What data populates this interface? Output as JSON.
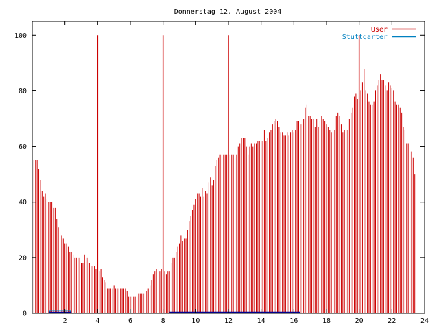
{
  "chart_data": {
    "type": "bar",
    "title": "Donnerstag 12. August 2004",
    "xlabel": "",
    "ylabel": "",
    "xlim": [
      0,
      24
    ],
    "ylim": [
      0,
      105
    ],
    "grid": false,
    "legend_position": "top-right",
    "x_ticks": [
      "2",
      "4",
      "6",
      "8",
      "10",
      "12",
      "14",
      "16",
      "18",
      "20",
      "22",
      "24"
    ],
    "y_ticks": [
      "0",
      "20",
      "40",
      "60",
      "80",
      "100"
    ],
    "series": [
      {
        "name": "User",
        "color": "#cc0000",
        "x_start": 0,
        "x_step": 0.1,
        "values": [
          63,
          55,
          55,
          55,
          52,
          48,
          44,
          42,
          43,
          41,
          40,
          40,
          40,
          38,
          38,
          34,
          31,
          29,
          28,
          27,
          25,
          25,
          24,
          22,
          22,
          21,
          20,
          20,
          20,
          20,
          18,
          18,
          21,
          20,
          20,
          18,
          17,
          17,
          17,
          16,
          16,
          15,
          16,
          13,
          12,
          11,
          9,
          9,
          9,
          9,
          10,
          9,
          9,
          9,
          9,
          9,
          9,
          9,
          8,
          6,
          6,
          6,
          6,
          6,
          6,
          7,
          7,
          7,
          7,
          7,
          8,
          9,
          10,
          12,
          14,
          15,
          16,
          16,
          15,
          16,
          14,
          15,
          14,
          15,
          15,
          18,
          20,
          20,
          22,
          24,
          25,
          28,
          26,
          27,
          27,
          30,
          33,
          35,
          37,
          39,
          41,
          43,
          43,
          42,
          45,
          42,
          44,
          43,
          47,
          49,
          46,
          48,
          53,
          55,
          56,
          57,
          57,
          57,
          57,
          57,
          58,
          57,
          57,
          57,
          56,
          57,
          60,
          61,
          63,
          63,
          63,
          60,
          57,
          60,
          61,
          60,
          61,
          61,
          62,
          62,
          62,
          62,
          66,
          62,
          63,
          65,
          66,
          68,
          69,
          70,
          69,
          67,
          65,
          65,
          64,
          64,
          65,
          64,
          65,
          66,
          65,
          66,
          69,
          69,
          68,
          68,
          70,
          74,
          75,
          71,
          71,
          70,
          70,
          67,
          70,
          67,
          69,
          71,
          70,
          69,
          68,
          67,
          66,
          65,
          65,
          66,
          71,
          72,
          71,
          68,
          65,
          66,
          66,
          66,
          70,
          72,
          74,
          78,
          79,
          77,
          76,
          80,
          83,
          88,
          80,
          79,
          76,
          75,
          75,
          76,
          80,
          82,
          84,
          86,
          84,
          84,
          82,
          80,
          83,
          82,
          81,
          80,
          76,
          75,
          75,
          74,
          72,
          67,
          66,
          61,
          61,
          58,
          58,
          56,
          50
        ]
      },
      {
        "name": "Stuttgarter",
        "color": "#0080c0",
        "x_start": 0,
        "x_step": 0.1,
        "values": [
          0,
          0,
          0,
          0,
          0,
          0,
          0,
          0,
          0,
          0,
          0,
          1,
          1,
          1,
          1,
          1,
          1,
          1,
          1,
          1,
          1,
          1,
          1,
          1,
          0,
          0,
          0,
          0,
          0,
          0,
          0,
          0,
          0,
          0,
          0,
          0,
          0,
          0,
          0,
          0,
          0,
          0,
          0,
          0,
          0,
          0,
          0,
          0,
          0,
          0,
          0,
          0,
          0,
          0,
          0,
          0,
          0,
          0,
          0,
          0,
          0,
          0,
          0,
          0,
          0,
          0,
          0,
          0,
          0,
          0,
          0,
          0,
          0,
          0,
          0,
          0,
          0,
          0,
          0,
          0,
          0,
          0,
          0,
          0,
          0,
          0,
          0,
          0,
          0,
          0,
          0,
          0,
          0,
          0,
          0,
          0,
          0,
          0,
          0,
          0,
          0,
          0,
          0,
          0,
          0,
          0,
          0,
          0,
          0,
          0,
          0,
          0,
          0,
          0,
          0,
          0,
          0,
          0,
          0,
          0,
          0,
          0,
          0,
          0,
          0,
          0,
          0,
          0,
          0,
          0,
          0,
          0,
          0,
          0,
          0,
          0,
          0,
          0,
          0,
          0,
          0,
          0,
          0,
          0,
          0,
          0,
          0,
          0,
          0,
          0,
          0,
          0,
          0,
          0,
          0,
          0,
          0,
          0,
          0,
          0,
          0,
          0,
          0,
          0,
          0,
          0,
          0,
          0,
          0,
          0,
          0,
          0,
          0,
          0,
          0,
          0,
          0,
          0,
          0,
          0,
          0,
          0,
          0,
          0,
          0,
          0,
          0,
          0,
          0,
          0,
          0,
          0,
          0,
          0,
          0,
          0,
          0,
          0,
          0,
          0,
          0,
          0,
          0,
          0,
          0,
          0,
          0,
          0,
          0,
          0,
          0,
          0,
          0,
          0,
          0,
          0,
          0,
          0,
          0,
          0,
          0,
          0,
          0,
          0,
          0,
          0,
          0,
          0,
          0,
          0,
          0,
          0,
          0,
          0,
          0,
          0
        ]
      }
    ],
    "highlight_lines": {
      "color": "#cc0000",
      "x": [
        4,
        8,
        12,
        20
      ],
      "values": [
        100,
        100,
        100,
        100
      ]
    },
    "baseline_marks": {
      "color": "#00008b",
      "segments": [
        [
          1,
          2.4
        ],
        [
          8.4,
          16.4
        ]
      ]
    }
  }
}
